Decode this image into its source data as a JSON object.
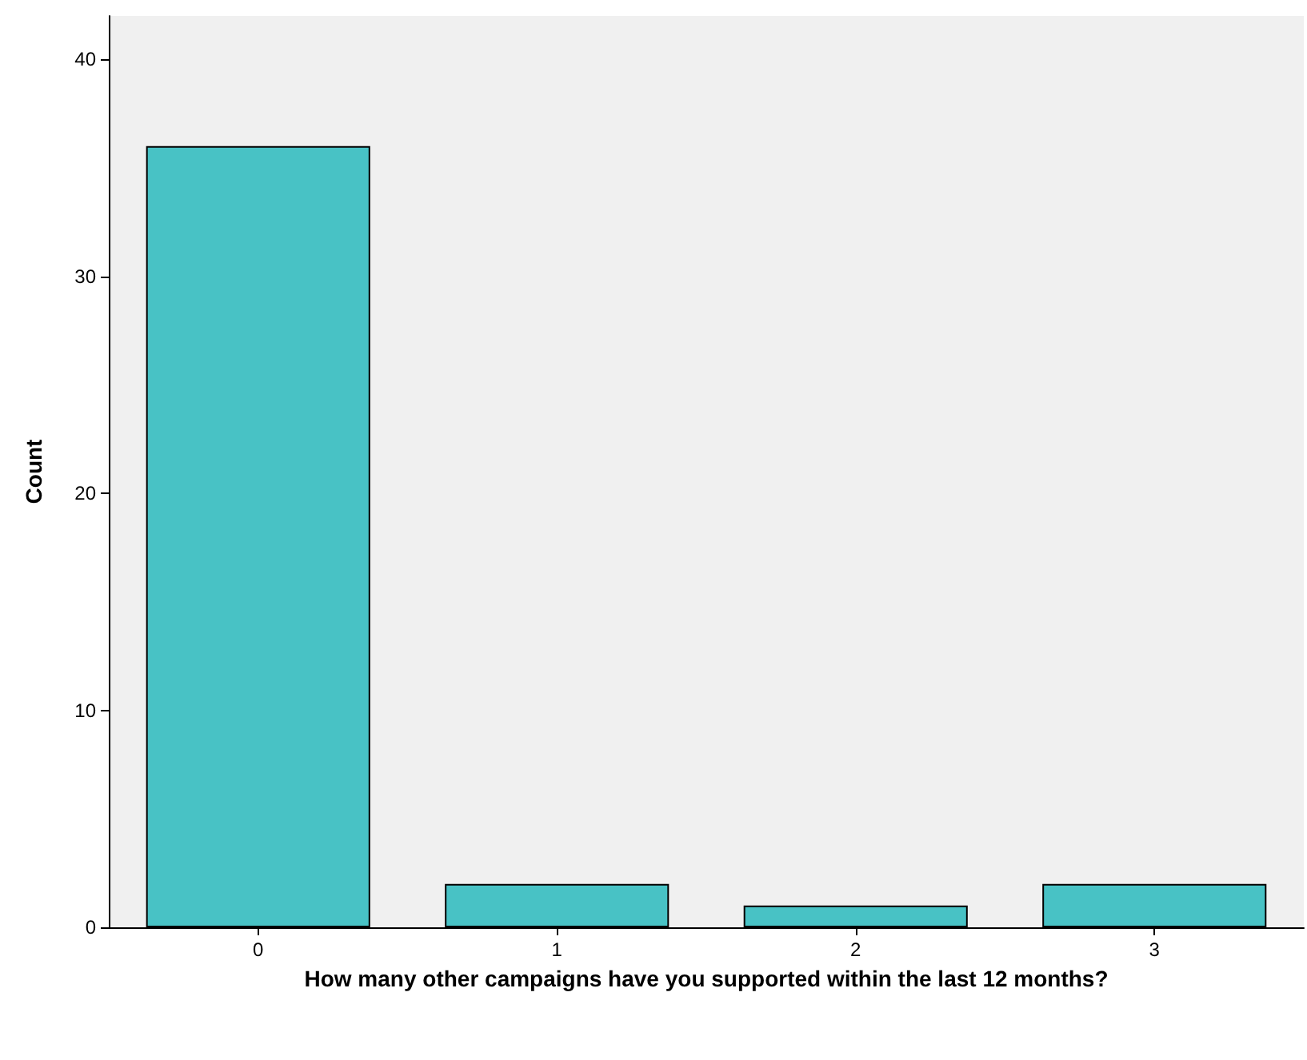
{
  "chart_data": {
    "type": "bar",
    "xlabel": "How many other campaigns have you supported within the last 12 months?",
    "ylabel": "Count",
    "categories": [
      "0",
      "1",
      "2",
      "3"
    ],
    "values": [
      36,
      2,
      1,
      2
    ],
    "color": "#48c2c5",
    "ylim": [
      0,
      42
    ],
    "yticks": [
      0,
      10,
      20,
      30,
      40
    ],
    "grid": false
  }
}
